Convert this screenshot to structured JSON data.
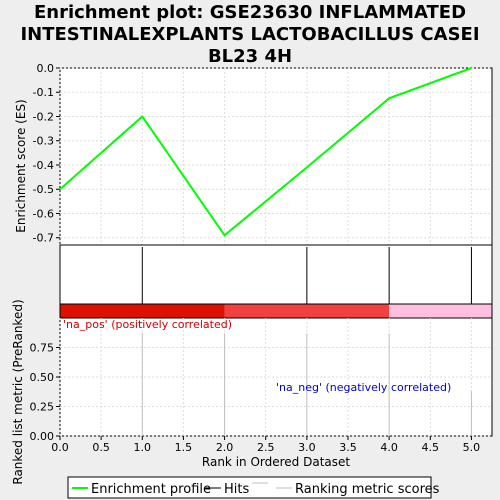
{
  "title": "Enrichment plot: GSE23630 INFLAMMATED INTESTINALEXPLANTS LACTOBACILLUS CASEI BL23 4H",
  "chart_data": {
    "type": "line",
    "title": "Enrichment plot: GSE23630 INFLAMMATED INTESTINALEXPLANTS LACTOBACILLUS CASEI BL23 4H",
    "xlabel": "Rank in Ordered Dataset",
    "xlim": [
      0,
      5.25
    ],
    "x_ticks": [
      "0.0",
      "0.5",
      "1.0",
      "1.5",
      "2.0",
      "2.5",
      "3.0",
      "3.5",
      "4.0",
      "4.5",
      "5.0"
    ],
    "es_panel": {
      "ylabel": "Enrichment score (ES)",
      "ylim": [
        -0.73,
        0.0
      ],
      "y_ticks": [
        "0.0",
        "-0.1",
        "-0.2",
        "-0.3",
        "-0.4",
        "-0.5",
        "-0.6",
        "-0.7"
      ],
      "series": [
        {
          "name": "Enrichment profile",
          "color": "#00ff00",
          "x": [
            0,
            1,
            2,
            3,
            4,
            5
          ],
          "y": [
            -0.5,
            -0.2,
            -0.69,
            -0.41,
            -0.125,
            0.0
          ]
        }
      ]
    },
    "hits": {
      "name": "Hits",
      "x": [
        1,
        3,
        4,
        5
      ],
      "color": "#000000"
    },
    "ranking_panel": {
      "ylabel": "Ranked list metric (PreRanked)",
      "ylim": [
        0,
        1.0
      ],
      "y_ticks": [
        "0.00",
        "0.25",
        "0.50",
        "0.75"
      ],
      "series": [
        {
          "name": "Ranking metric scores",
          "color": "#c0c0c0",
          "x": [
            1,
            2,
            3,
            4,
            5
          ],
          "y": [
            0.87,
            0.87,
            0.87,
            0.87,
            0.38
          ]
        }
      ],
      "annotations": [
        {
          "text": "'na_pos' (positively correlated)",
          "color": "#cc0000"
        },
        {
          "text": "'na_neg' (negatively correlated)",
          "color": "#0000cc"
        }
      ]
    },
    "color_bar": [
      {
        "from": 0,
        "to": 2,
        "color": "#dd1100"
      },
      {
        "from": 2,
        "to": 4,
        "color": "#f04040"
      },
      {
        "from": 4,
        "to": 5.25,
        "color": "#ffc0e0"
      }
    ],
    "legend": {
      "placement": "bottom",
      "items": [
        {
          "label": "Enrichment profile",
          "color": "#00ff00"
        },
        {
          "label": "Hits",
          "color": "#000000"
        },
        {
          "label": "",
          "color": "#c0c0c0"
        },
        {
          "label": "Ranking metric scores",
          "color": "#c0c0c0"
        }
      ]
    }
  }
}
